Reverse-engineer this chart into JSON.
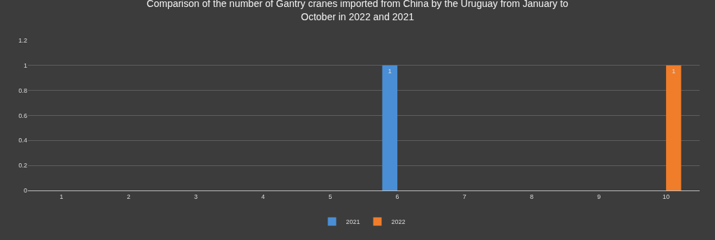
{
  "chart_data": {
    "type": "bar",
    "title": "Comparison of the number of Gantry cranes imported from China by the Uruguay from January to October in 2022 and 2021",
    "categories": [
      "1",
      "2",
      "3",
      "4",
      "5",
      "6",
      "7",
      "8",
      "9",
      "10"
    ],
    "series": [
      {
        "name": "2021",
        "color": "#4a8fd6",
        "values": [
          0,
          0,
          0,
          0,
          0,
          1,
          0,
          0,
          0,
          0
        ],
        "value_labels": [
          null,
          null,
          null,
          null,
          null,
          "1",
          null,
          null,
          null,
          null
        ]
      },
      {
        "name": "2022",
        "color": "#f07d2a",
        "values": [
          0,
          0,
          0,
          0,
          0,
          0,
          0,
          0,
          0,
          1
        ],
        "value_labels": [
          null,
          null,
          null,
          null,
          null,
          null,
          null,
          null,
          null,
          "1"
        ]
      }
    ],
    "ylim": [
      0,
      1.2
    ],
    "yticks": [
      0,
      0.2,
      0.4,
      0.6,
      0.8,
      1,
      1.2
    ],
    "grid": "y",
    "legend": "bottom"
  }
}
